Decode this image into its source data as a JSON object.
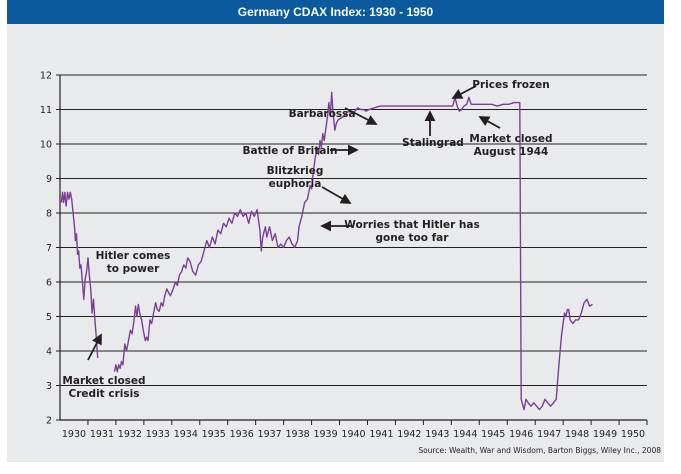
{
  "header": {
    "title": "Germany CDAX Index: 1930 - 1950"
  },
  "colors": {
    "title_bg": "#0b5a9e",
    "panel_bg": "#e9eaec",
    "line": "#7b3f99",
    "grid": "#231f20"
  },
  "source": "Source: Wealth, War and Wisdom, Barton Biggs, Wiley Inc., 2008",
  "chart_data": {
    "type": "line",
    "title": "Germany CDAX Index: 1930 - 1950",
    "xlabel": "",
    "ylabel": "",
    "xlim": [
      1930,
      1951
    ],
    "ylim": [
      2,
      12
    ],
    "grid": true,
    "y_ticks": [
      "2",
      "3",
      "4",
      "5",
      "6",
      "7",
      "8",
      "9",
      "10",
      "11",
      "12"
    ],
    "x_ticks": [
      "1930",
      "1931",
      "1932",
      "1933",
      "1934",
      "1935",
      "1936",
      "1937",
      "1938",
      "1939",
      "1940",
      "1941",
      "1942",
      "1943",
      "1944",
      "1945",
      "1946",
      "1947",
      "1948",
      "1949",
      "1950"
    ],
    "series": [
      {
        "name": "CDAX Index",
        "segments": [
          [
            [
              1930.0,
              8.3
            ],
            [
              1930.04,
              8.6
            ],
            [
              1930.08,
              8.3
            ],
            [
              1930.12,
              8.6
            ],
            [
              1930.17,
              8.2
            ],
            [
              1930.22,
              8.6
            ],
            [
              1930.27,
              8.4
            ],
            [
              1930.32,
              8.6
            ],
            [
              1930.37,
              8.4
            ],
            [
              1930.42,
              8.0
            ],
            [
              1930.47,
              7.6
            ],
            [
              1930.5,
              7.2
            ],
            [
              1930.54,
              7.4
            ],
            [
              1930.58,
              6.8
            ],
            [
              1930.62,
              6.9
            ],
            [
              1930.66,
              6.4
            ],
            [
              1930.7,
              6.5
            ],
            [
              1930.75,
              6.0
            ],
            [
              1930.8,
              5.5
            ],
            [
              1930.85,
              6.1
            ],
            [
              1930.9,
              6.3
            ],
            [
              1930.95,
              6.7
            ],
            [
              1931.0,
              6.2
            ],
            [
              1931.05,
              5.8
            ],
            [
              1931.1,
              5.1
            ],
            [
              1931.15,
              5.5
            ],
            [
              1931.2,
              4.9
            ],
            [
              1931.25,
              4.4
            ],
            [
              1931.3,
              3.8
            ]
          ],
          [
            [
              1931.9,
              3.4
            ],
            [
              1931.95,
              3.6
            ],
            [
              1932.0,
              3.4
            ],
            [
              1932.05,
              3.6
            ],
            [
              1932.1,
              3.5
            ],
            [
              1932.15,
              3.7
            ],
            [
              1932.2,
              3.6
            ],
            [
              1932.27,
              4.2
            ],
            [
              1932.33,
              4.0
            ],
            [
              1932.4,
              4.3
            ],
            [
              1932.47,
              4.6
            ],
            [
              1932.53,
              4.5
            ],
            [
              1932.6,
              4.9
            ],
            [
              1932.65,
              5.3
            ],
            [
              1932.7,
              5.0
            ],
            [
              1932.75,
              5.35
            ],
            [
              1932.8,
              5.1
            ],
            [
              1932.87,
              4.9
            ],
            [
              1932.93,
              4.6
            ],
            [
              1933.0,
              4.3
            ],
            [
              1933.05,
              4.4
            ],
            [
              1933.1,
              4.3
            ],
            [
              1933.17,
              4.9
            ],
            [
              1933.23,
              4.8
            ],
            [
              1933.3,
              5.1
            ],
            [
              1933.37,
              5.4
            ],
            [
              1933.43,
              5.2
            ],
            [
              1933.5,
              5.15
            ],
            [
              1933.57,
              5.4
            ],
            [
              1933.63,
              5.3
            ],
            [
              1933.7,
              5.6
            ],
            [
              1933.77,
              5.8
            ],
            [
              1933.83,
              5.7
            ],
            [
              1933.9,
              5.6
            ],
            [
              1934.0,
              5.8
            ],
            [
              1934.08,
              6.0
            ],
            [
              1934.15,
              5.9
            ],
            [
              1934.22,
              6.2
            ],
            [
              1934.3,
              6.3
            ],
            [
              1934.38,
              6.5
            ],
            [
              1934.45,
              6.4
            ],
            [
              1934.52,
              6.7
            ],
            [
              1934.6,
              6.6
            ],
            [
              1934.7,
              6.3
            ],
            [
              1934.8,
              6.2
            ],
            [
              1934.9,
              6.5
            ],
            [
              1935.0,
              6.6
            ],
            [
              1935.1,
              6.9
            ],
            [
              1935.2,
              7.2
            ],
            [
              1935.3,
              7.0
            ],
            [
              1935.4,
              7.3
            ],
            [
              1935.5,
              7.1
            ],
            [
              1935.6,
              7.5
            ],
            [
              1935.7,
              7.4
            ],
            [
              1935.8,
              7.7
            ],
            [
              1935.9,
              7.6
            ],
            [
              1936.0,
              7.85
            ],
            [
              1936.1,
              7.7
            ],
            [
              1936.2,
              8.0
            ],
            [
              1936.3,
              7.9
            ],
            [
              1936.4,
              8.1
            ],
            [
              1936.5,
              7.9
            ],
            [
              1936.6,
              8.0
            ],
            [
              1936.7,
              7.7
            ],
            [
              1936.8,
              8.05
            ],
            [
              1936.9,
              7.9
            ],
            [
              1937.0,
              8.1
            ],
            [
              1937.05,
              7.8
            ],
            [
              1937.1,
              7.5
            ],
            [
              1937.15,
              6.9
            ],
            [
              1937.2,
              7.3
            ],
            [
              1937.3,
              7.6
            ],
            [
              1937.35,
              7.3
            ],
            [
              1937.45,
              7.6
            ],
            [
              1937.55,
              7.2
            ],
            [
              1937.65,
              7.4
            ],
            [
              1937.75,
              7.0
            ],
            [
              1937.85,
              7.1
            ],
            [
              1937.95,
              7.0
            ],
            [
              1938.05,
              7.2
            ],
            [
              1938.15,
              7.3
            ],
            [
              1938.25,
              7.1
            ],
            [
              1938.35,
              7.0
            ],
            [
              1938.45,
              7.2
            ],
            [
              1938.5,
              7.6
            ],
            [
              1938.6,
              7.9
            ],
            [
              1938.7,
              8.3
            ],
            [
              1938.8,
              8.4
            ],
            [
              1938.9,
              8.8
            ],
            [
              1938.95,
              8.7
            ],
            [
              1939.0,
              9.1
            ],
            [
              1939.08,
              9.6
            ],
            [
              1939.15,
              9.9
            ],
            [
              1939.2,
              9.7
            ],
            [
              1939.25,
              10.1
            ],
            [
              1939.3,
              9.9
            ],
            [
              1939.35,
              10.3
            ],
            [
              1939.4,
              10.1
            ],
            [
              1939.47,
              10.5
            ],
            [
              1939.52,
              10.8
            ],
            [
              1939.57,
              11.2
            ],
            [
              1939.62,
              10.8
            ],
            [
              1939.67,
              11.5
            ],
            [
              1939.72,
              10.9
            ],
            [
              1939.78,
              10.4
            ],
            [
              1939.84,
              10.6
            ],
            [
              1939.9,
              10.7
            ],
            [
              1940.0,
              10.75
            ],
            [
              1940.1,
              10.8
            ],
            [
              1940.2,
              10.9
            ],
            [
              1940.3,
              10.95
            ],
            [
              1940.4,
              10.9
            ],
            [
              1940.5,
              10.95
            ],
            [
              1940.6,
              11.05
            ],
            [
              1940.7,
              11.0
            ],
            [
              1940.8,
              11.0
            ],
            [
              1940.9,
              10.95
            ],
            [
              1941.0,
              11.0
            ],
            [
              1941.2,
              11.05
            ],
            [
              1941.4,
              11.1
            ],
            [
              1941.6,
              11.1
            ],
            [
              1941.8,
              11.1
            ],
            [
              1942.0,
              11.1
            ],
            [
              1942.3,
              11.1
            ],
            [
              1942.6,
              11.1
            ],
            [
              1942.9,
              11.1
            ],
            [
              1943.2,
              11.1
            ],
            [
              1943.5,
              11.1
            ],
            [
              1943.8,
              11.1
            ],
            [
              1944.0,
              11.1
            ],
            [
              1944.08,
              11.35
            ],
            [
              1944.16,
              11.1
            ],
            [
              1944.24,
              10.95
            ],
            [
              1944.32,
              11.0
            ],
            [
              1944.4,
              11.1
            ],
            [
              1944.5,
              11.15
            ],
            [
              1944.58,
              11.35
            ],
            [
              1944.66,
              11.15
            ],
            [
              1944.8,
              11.15
            ],
            [
              1945.0,
              11.15
            ],
            [
              1945.2,
              11.15
            ],
            [
              1945.4,
              11.15
            ],
            [
              1945.6,
              11.1
            ],
            [
              1945.8,
              11.15
            ],
            [
              1946.0,
              11.15
            ],
            [
              1946.2,
              11.2
            ],
            [
              1946.3,
              11.2
            ],
            [
              1946.4,
              11.2
            ],
            [
              1946.45,
              2.6
            ],
            [
              1946.55,
              2.3
            ],
            [
              1946.62,
              2.6
            ],
            [
              1946.7,
              2.5
            ],
            [
              1946.8,
              2.4
            ],
            [
              1946.9,
              2.5
            ],
            [
              1947.0,
              2.4
            ],
            [
              1947.1,
              2.3
            ],
            [
              1947.2,
              2.4
            ],
            [
              1947.3,
              2.6
            ],
            [
              1947.4,
              2.5
            ],
            [
              1947.5,
              2.4
            ],
            [
              1947.6,
              2.5
            ],
            [
              1947.7,
              2.6
            ],
            [
              1947.8,
              3.6
            ],
            [
              1947.9,
              4.5
            ],
            [
              1948.0,
              5.1
            ],
            [
              1948.05,
              5.0
            ],
            [
              1948.1,
              5.2
            ],
            [
              1948.15,
              5.2
            ],
            [
              1948.2,
              4.9
            ],
            [
              1948.3,
              4.8
            ],
            [
              1948.4,
              4.9
            ],
            [
              1948.5,
              4.9
            ],
            [
              1948.6,
              5.1
            ],
            [
              1948.7,
              5.4
            ],
            [
              1948.8,
              5.5
            ],
            [
              1948.9,
              5.3
            ],
            [
              1949.0,
              5.35
            ]
          ]
        ]
      }
    ],
    "annotations": [
      {
        "text": [
          "Hitler comes",
          "to power"
        ]
      },
      {
        "text": [
          "Market closed",
          "Credit crisis"
        ]
      },
      {
        "text": [
          "Worries that Hitler has",
          "gone too far"
        ]
      },
      {
        "text": [
          "Blitzkrieg",
          "euphoria"
        ]
      },
      {
        "text": [
          "Battle of Britain"
        ]
      },
      {
        "text": [
          "Barbarossa"
        ]
      },
      {
        "text": [
          "Stalingrad"
        ]
      },
      {
        "text": [
          "Prices frozen"
        ]
      },
      {
        "text": [
          "Market closed",
          "August 1944"
        ]
      }
    ]
  }
}
